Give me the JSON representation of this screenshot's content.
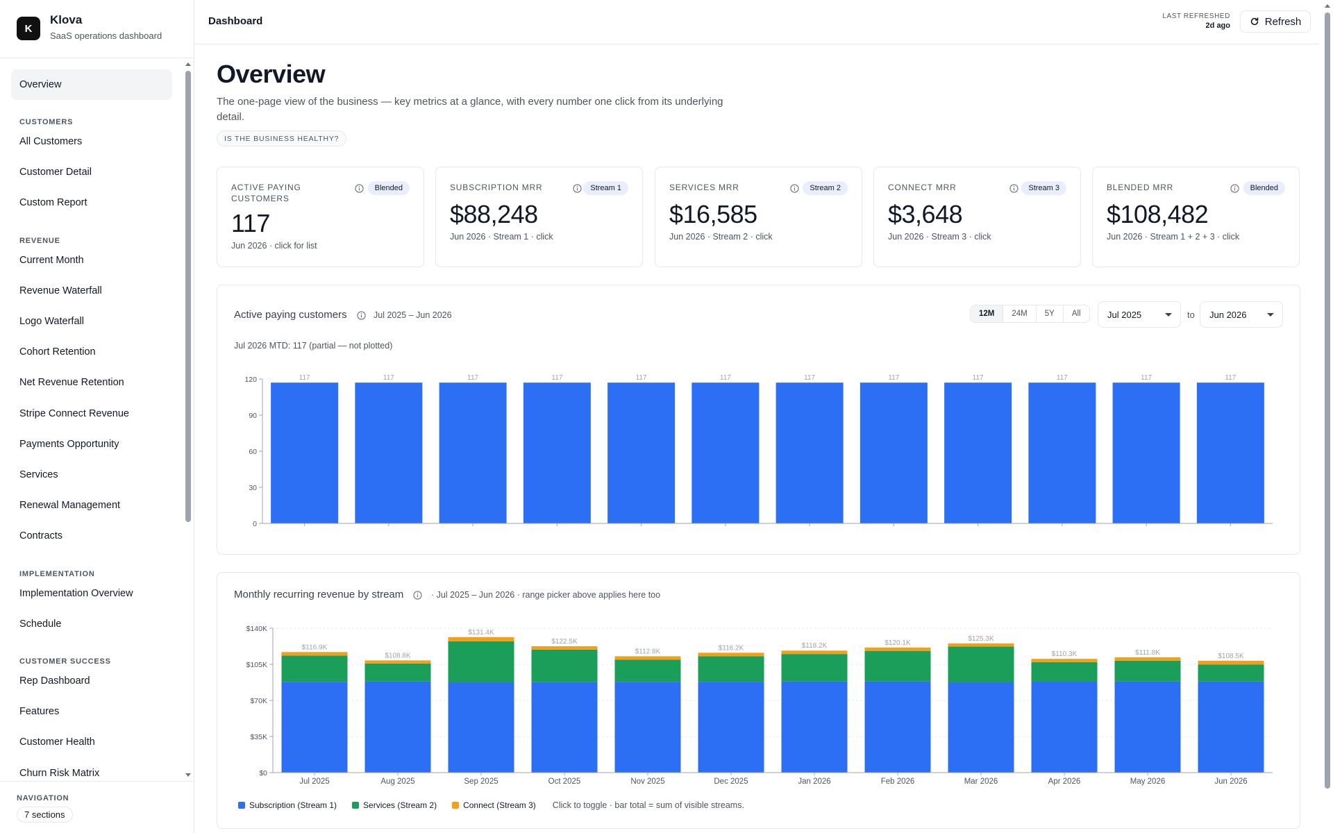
{
  "brand": {
    "logo_letter": "K",
    "name": "Klova",
    "subtitle": "SaaS operations dashboard"
  },
  "sidebar": {
    "items": [
      {
        "type": "item",
        "label": "Overview",
        "active": true
      },
      {
        "type": "section",
        "label": "CUSTOMERS"
      },
      {
        "type": "item",
        "label": "All Customers"
      },
      {
        "type": "item",
        "label": "Customer Detail"
      },
      {
        "type": "item",
        "label": "Custom Report"
      },
      {
        "type": "section",
        "label": "REVENUE"
      },
      {
        "type": "item",
        "label": "Current Month"
      },
      {
        "type": "item",
        "label": "Revenue Waterfall"
      },
      {
        "type": "item",
        "label": "Logo Waterfall"
      },
      {
        "type": "item",
        "label": "Cohort Retention"
      },
      {
        "type": "item",
        "label": "Net Revenue Retention"
      },
      {
        "type": "item",
        "label": "Stripe Connect Revenue"
      },
      {
        "type": "item",
        "label": "Payments Opportunity"
      },
      {
        "type": "item",
        "label": "Services"
      },
      {
        "type": "item",
        "label": "Renewal Management"
      },
      {
        "type": "item",
        "label": "Contracts"
      },
      {
        "type": "section",
        "label": "IMPLEMENTATION"
      },
      {
        "type": "item",
        "label": "Implementation Overview"
      },
      {
        "type": "item",
        "label": "Schedule"
      },
      {
        "type": "section",
        "label": "CUSTOMER SUCCESS"
      },
      {
        "type": "item",
        "label": "Rep Dashboard"
      },
      {
        "type": "item",
        "label": "Features"
      },
      {
        "type": "item",
        "label": "Customer Health"
      },
      {
        "type": "item",
        "label": "Churn Risk Matrix"
      }
    ],
    "footer": {
      "label": "NAVIGATION",
      "pill": "7 sections"
    }
  },
  "topbar": {
    "title": "Dashboard",
    "refreshed_label": "LAST REFRESHED",
    "refreshed_value": "2d ago",
    "refresh_label": "Refresh"
  },
  "page": {
    "title": "Overview",
    "description": "The one-page view of the business — key metrics at a glance, with every number one click from its underlying detail.",
    "pill": "IS THE BUSINESS HEALTHY?"
  },
  "kpis": [
    {
      "label": "ACTIVE PAYING CUSTOMERS",
      "badge": "Blended",
      "value": "117",
      "sub": "Jun 2026 · click for list"
    },
    {
      "label": "SUBSCRIPTION MRR",
      "badge": "Stream 1",
      "value": "$88,248",
      "sub": "Jun 2026 · Stream 1 · click"
    },
    {
      "label": "SERVICES MRR",
      "badge": "Stream 2",
      "value": "$16,585",
      "sub": "Jun 2026 · Stream 2 · click"
    },
    {
      "label": "CONNECT MRR",
      "badge": "Stream 3",
      "value": "$3,648",
      "sub": "Jun 2026 · Stream 3 · click"
    },
    {
      "label": "BLENDED MRR",
      "badge": "Blended",
      "value": "$108,482",
      "sub": "Jun 2026 · Stream 1 + 2 + 3 · click"
    }
  ],
  "customers_card": {
    "title": "Active paying customers",
    "subtitle": "Jul 2025 – Jun 2026",
    "note": "Jul 2026 MTD: 117 (partial — not plotted)",
    "ranges": [
      "12M",
      "24M",
      "5Y",
      "All"
    ],
    "active_range": "12M",
    "from": "Jul 2025",
    "to_label": "to",
    "to": "Jun 2026"
  },
  "mrr_card": {
    "title": "Monthly recurring revenue by stream",
    "subtitle": "· Jul 2025 – Jun 2026 · range picker above applies here too",
    "legend_hint": "Click to toggle · bar total = sum of visible streams."
  },
  "colors": {
    "subscription": "#2c6ff5",
    "services": "#1a9e5a",
    "connect": "#f2a01b",
    "accent": "#2c6ff5"
  },
  "chart_data": [
    {
      "type": "bar",
      "title": "Active paying customers",
      "categories": [
        "Jul 2025",
        "Aug 2025",
        "Sep 2025",
        "Oct 2025",
        "Nov 2025",
        "Dec 2025",
        "Jan 2026",
        "Feb 2026",
        "Mar 2026",
        "Apr 2026",
        "May 2026",
        "Jun 2026"
      ],
      "values": [
        117,
        117,
        117,
        117,
        117,
        117,
        117,
        117,
        117,
        117,
        117,
        117
      ],
      "data_labels": [
        "117",
        "117",
        "117",
        "117",
        "117",
        "117",
        "117",
        "117",
        "117",
        "117",
        "117",
        "117"
      ],
      "ylim": [
        0,
        120
      ],
      "yticks": [
        0,
        30,
        60,
        90,
        120
      ],
      "ytick_labels": [
        "0",
        "30",
        "60",
        "90",
        "120"
      ],
      "grid": false,
      "legend": "none"
    },
    {
      "type": "bar",
      "stacked": true,
      "title": "Monthly recurring revenue by stream",
      "categories": [
        "Jul 2025",
        "Aug 2025",
        "Sep 2025",
        "Oct 2025",
        "Nov 2025",
        "Dec 2025",
        "Jan 2026",
        "Feb 2026",
        "Mar 2026",
        "Apr 2026",
        "May 2026",
        "Jun 2026"
      ],
      "series": [
        {
          "name": "Subscription (Stream 1)",
          "values": [
            88000,
            88300,
            87500,
            87700,
            88000,
            88100,
            88400,
            88400,
            87500,
            88200,
            88300,
            88248
          ]
        },
        {
          "name": "Services (Stream 2)",
          "values": [
            25500,
            17500,
            39700,
            31500,
            21400,
            24700,
            26600,
            29600,
            34700,
            18900,
            20100,
            16585
          ]
        },
        {
          "name": "Connect (Stream 3)",
          "values": [
            3400,
            3000,
            4200,
            3300,
            3400,
            3400,
            3300,
            3300,
            3100,
            3200,
            3400,
            3648
          ]
        }
      ],
      "totals_labels": [
        "$116.9K",
        "$108.8K",
        "$131.4K",
        "$122.5K",
        "$112.8K",
        "$116.2K",
        "$118.2K",
        "$120.1K",
        "$125.3K",
        "$110.3K",
        "$111.8K",
        "$108.5K"
      ],
      "ylim": [
        0,
        140000
      ],
      "yticks": [
        0,
        35000,
        70000,
        105000,
        140000
      ],
      "ytick_labels": [
        "$0",
        "$35K",
        "$70K",
        "$105K",
        "$140K"
      ],
      "grid": true,
      "legend": "bottom-left"
    }
  ]
}
